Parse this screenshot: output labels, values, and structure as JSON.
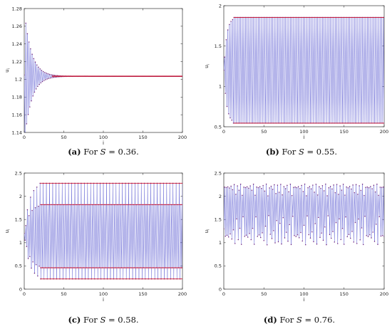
{
  "chart_data": [
    {
      "type": "line",
      "panel": "a",
      "caption": {
        "label": "(a)",
        "prefix": "For",
        "var": "S",
        "eq": "=",
        "value": "0.36."
      },
      "xlabel": "i",
      "ylabel": "u_i",
      "xlim": [
        0,
        200
      ],
      "ylim": [
        1.14,
        1.28
      ],
      "xticks": [
        "0",
        "50",
        "100",
        "150",
        "200"
      ],
      "yticks": [
        "1.14",
        "1.16",
        "1.18",
        "1.2",
        "1.22",
        "1.24",
        "1.26",
        "1.28"
      ],
      "dynamics": "damped",
      "start": 1.205,
      "amp": 0.067,
      "decay": 0.11,
      "level": 1.2035,
      "steady_color": "#c8102e",
      "grid": false
    },
    {
      "type": "line",
      "panel": "b",
      "caption": {
        "label": "(b)",
        "prefix": "For",
        "var": "S",
        "eq": "=",
        "value": "0.55."
      },
      "xlabel": "i",
      "ylabel": "u_i",
      "xlim": [
        0,
        200
      ],
      "ylim": [
        0.5,
        2
      ],
      "xticks": [
        "0",
        "50",
        "100",
        "150",
        "200"
      ],
      "yticks": [
        "0.5",
        "1",
        "1.5",
        "2"
      ],
      "dynamics": "cycle2",
      "start": 1.2,
      "hi": 1.855,
      "lo": 0.545,
      "grow": 0.18,
      "steady_from": 12,
      "steady_color": "#c8102e",
      "grid": false
    },
    {
      "type": "line",
      "panel": "c",
      "caption": {
        "label": "(c)",
        "prefix": "For",
        "var": "S",
        "eq": "=",
        "value": "0.58."
      },
      "xlabel": "i",
      "ylabel": "u_i",
      "xlim": [
        0,
        200
      ],
      "ylim": [
        0,
        2.5
      ],
      "xticks": [
        "0",
        "50",
        "100",
        "150",
        "200"
      ],
      "yticks": [
        "0",
        "0.5",
        "1",
        "1.5",
        "2",
        "2.5"
      ],
      "dynamics": "cycle4",
      "start": 1.2,
      "cycle": [
        2.28,
        0.22,
        1.82,
        0.46
      ],
      "grow": 0.16,
      "steady_from": 20,
      "steady_color": "#c8102e",
      "grid": false
    },
    {
      "type": "line",
      "panel": "d",
      "caption": {
        "label": "(d)",
        "prefix": "For",
        "var": "S",
        "eq": "=",
        "value": "0.76."
      },
      "xlabel": "i",
      "ylabel": "u_i",
      "xlim": [
        0,
        200
      ],
      "ylim": [
        0,
        2.5
      ],
      "xticks": [
        "0",
        "50",
        "100",
        "150",
        "200"
      ],
      "yticks": [
        "0",
        "0.5",
        "1",
        "1.5",
        "2",
        "2.5"
      ],
      "dynamics": "chaos",
      "start": 1.3,
      "r": 3.6,
      "grid": false
    }
  ],
  "style": {
    "line_color": "#6b6bd6",
    "marker_color": "#6b1f7a",
    "axis_color": "#333333"
  }
}
